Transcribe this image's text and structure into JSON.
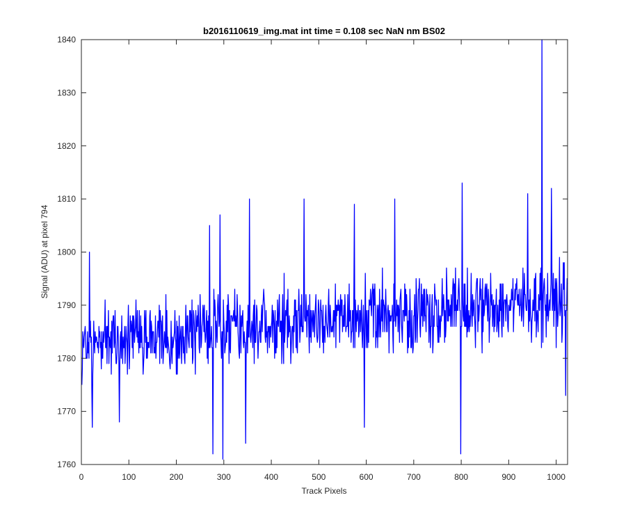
{
  "chart_data": {
    "type": "line",
    "title": "b2016110619_img.mat int time = 0.108 sec  NaN nm BS02",
    "xlabel": "Track Pixels",
    "ylabel": "Signal (ADU) at pixel 794",
    "xlim": [
      0,
      1024
    ],
    "ylim": [
      1760,
      1840
    ],
    "xticks": [
      0,
      100,
      200,
      300,
      400,
      500,
      600,
      700,
      800,
      900,
      1000
    ],
    "yticks": [
      1760,
      1770,
      1780,
      1790,
      1800,
      1810,
      1820,
      1830,
      1840
    ],
    "grid": false,
    "legend": "none",
    "series": [
      {
        "color": "#0000ff",
        "x_start": 1,
        "x_step": 1,
        "count": 1024,
        "baseline_start": 1783,
        "baseline_end": 1791,
        "noise_amplitude": 6,
        "peaks": [
          {
            "x": 17,
            "y": 1800
          },
          {
            "x": 23,
            "y": 1767
          },
          {
            "x": 80,
            "y": 1768
          },
          {
            "x": 270,
            "y": 1805
          },
          {
            "x": 277,
            "y": 1762
          },
          {
            "x": 292,
            "y": 1807
          },
          {
            "x": 298,
            "y": 1761
          },
          {
            "x": 346,
            "y": 1764
          },
          {
            "x": 354,
            "y": 1810
          },
          {
            "x": 469,
            "y": 1810
          },
          {
            "x": 575,
            "y": 1809
          },
          {
            "x": 596,
            "y": 1767
          },
          {
            "x": 660,
            "y": 1810
          },
          {
            "x": 799,
            "y": 1762
          },
          {
            "x": 802,
            "y": 1813
          },
          {
            "x": 940,
            "y": 1811
          },
          {
            "x": 970,
            "y": 1840
          },
          {
            "x": 975,
            "y": 1795
          },
          {
            "x": 990,
            "y": 1812
          },
          {
            "x": 1020,
            "y": 1773
          }
        ]
      }
    ]
  }
}
